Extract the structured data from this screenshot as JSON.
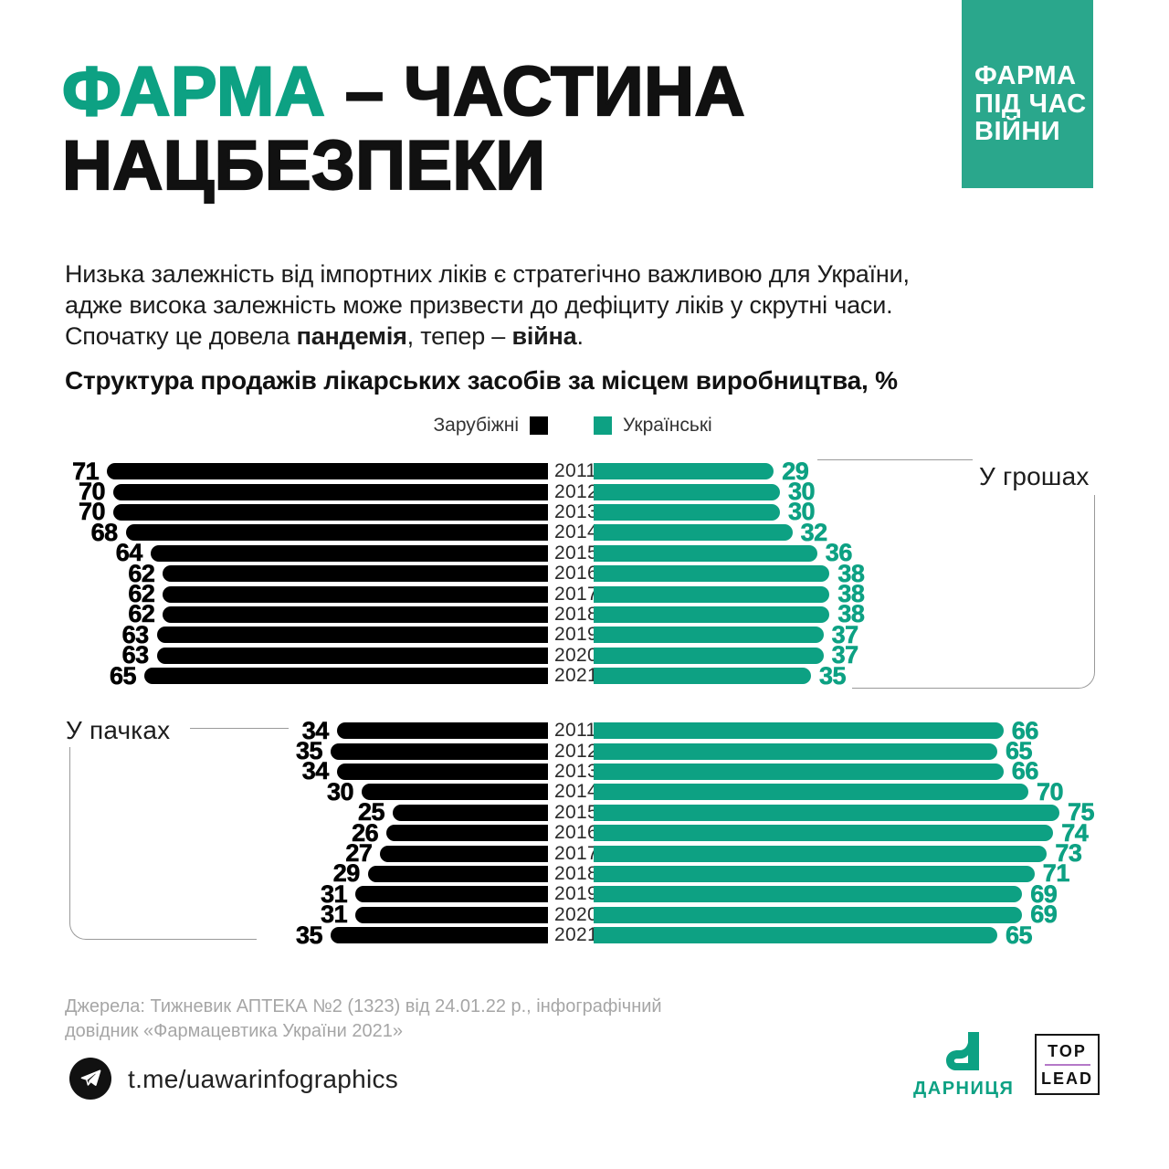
{
  "colors": {
    "accent": "#0DA183",
    "badge": "#2AA78C",
    "foreign": "#000000",
    "bracket_line": "#9A9A9A",
    "muted_text": "#A6A6A6",
    "toplead_purple": "#B478C8"
  },
  "badge": {
    "lines": [
      "ФАРМА",
      "ПІД ЧАС",
      "ВІЙНИ"
    ]
  },
  "title": {
    "highlight": "ФАРМА",
    "rest": " – ЧАСТИНА",
    "line2": "НАЦБЕЗПЕКИ"
  },
  "intro": {
    "line1": "Низька залежність від імпортних ліків є стратегічно важливою для України,",
    "line2": "адже висока залежність може призвести до дефіциту ліків у скрутні часи.",
    "line3_pre": "Спочатку це довела ",
    "line3_bold1": "пандемія",
    "line3_mid": ", тепер – ",
    "line3_bold2": "війна",
    "line3_end": "."
  },
  "chart_title": "Структура продажів лікарських засобів за місцем виробництва, %",
  "legend": {
    "foreign": "Зарубіжні",
    "ukrainian": "Українські"
  },
  "chart_data": [
    {
      "type": "bar",
      "title": "У грошах",
      "orientation": "horizontal-diverging",
      "unit": "%",
      "categories": [
        "2011",
        "2012",
        "2013",
        "2014",
        "2015",
        "2016",
        "2017",
        "2018",
        "2019",
        "2020",
        "2021"
      ],
      "series": [
        {
          "name": "Зарубіжні",
          "color": "#000000",
          "values": [
            71,
            70,
            70,
            68,
            64,
            62,
            62,
            62,
            63,
            63,
            65
          ]
        },
        {
          "name": "Українські",
          "color": "#0DA183",
          "values": [
            29,
            30,
            30,
            32,
            36,
            38,
            38,
            38,
            37,
            37,
            35
          ]
        }
      ]
    },
    {
      "type": "bar",
      "title": "У пачках",
      "orientation": "horizontal-diverging",
      "unit": "%",
      "categories": [
        "2011",
        "2012",
        "2013",
        "2014",
        "2015",
        "2016",
        "2017",
        "2018",
        "2019",
        "2020",
        "2021"
      ],
      "series": [
        {
          "name": "Зарубіжні",
          "color": "#000000",
          "values": [
            34,
            35,
            34,
            30,
            25,
            26,
            27,
            29,
            31,
            31,
            35
          ]
        },
        {
          "name": "Українські",
          "color": "#0DA183",
          "values": [
            66,
            65,
            66,
            70,
            75,
            74,
            73,
            71,
            69,
            69,
            65
          ]
        }
      ]
    }
  ],
  "source": {
    "line1": "Джерела: Тижневик АПТЕКА №2 (1323) від 24.01.22 р., інфографічний",
    "line2": "довідник «Фармацевтика України 2021»"
  },
  "footer": {
    "handle": "t.me/uawarinfographics",
    "darnitsa": "ДАРНИЦЯ",
    "toplead_top": "TOP",
    "toplead_lead": "LEAD"
  }
}
